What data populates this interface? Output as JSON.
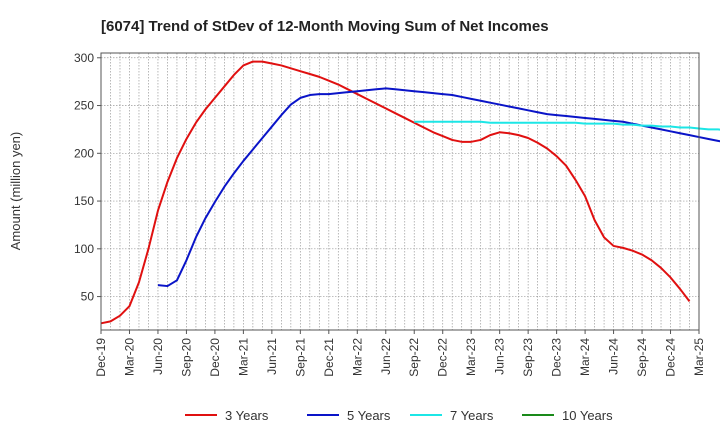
{
  "chart_data": {
    "type": "line",
    "title": "[6074]  Trend of StDev of 12-Month Moving Sum of Net Incomes",
    "xlabel": "",
    "ylabel": "Amount (million yen)",
    "ylim": [
      15,
      305
    ],
    "yticks": [
      50,
      100,
      150,
      200,
      250,
      300
    ],
    "grid": true,
    "legend_position": "bottom",
    "x_tick_labels": [
      "Dec-19",
      "Mar-20",
      "Jun-20",
      "Sep-20",
      "Dec-20",
      "Mar-21",
      "Jun-21",
      "Sep-21",
      "Dec-21",
      "Mar-22",
      "Jun-22",
      "Sep-22",
      "Dec-22",
      "Mar-23",
      "Jun-23",
      "Sep-23",
      "Dec-23",
      "Mar-24",
      "Jun-24",
      "Sep-24",
      "Dec-24",
      "Mar-25"
    ],
    "series": [
      {
        "name": "3 Years",
        "color": "#e01010",
        "start_month_index": 0,
        "values": [
          22,
          24,
          30,
          40,
          65,
          100,
          140,
          170,
          195,
          215,
          232,
          246,
          258,
          270,
          282,
          292,
          296,
          296,
          294,
          292,
          289,
          286,
          283,
          280,
          276,
          272,
          267,
          262,
          257,
          252,
          247,
          242,
          237,
          232,
          227,
          222,
          218,
          214,
          212,
          212,
          214,
          219,
          222,
          221,
          219,
          216,
          211,
          205,
          197,
          187,
          172,
          155,
          130,
          112,
          103,
          101,
          98,
          94,
          88,
          80,
          70,
          58,
          45
        ]
      },
      {
        "name": "5 Years",
        "color": "#0a14c8",
        "start_month_index": 6,
        "values": [
          62,
          61,
          67,
          88,
          112,
          132,
          149,
          165,
          179,
          192,
          204,
          216,
          228,
          240,
          251,
          258,
          261,
          262,
          262,
          263,
          264,
          265,
          266,
          267,
          268,
          267,
          266,
          265,
          264,
          263,
          262,
          261,
          259,
          257,
          255,
          253,
          251,
          249,
          247,
          245,
          243,
          241,
          240,
          239,
          238,
          237,
          236,
          235,
          234,
          233,
          231,
          229,
          227,
          225,
          223,
          221,
          219,
          217,
          215,
          213,
          211,
          209
        ]
      },
      {
        "name": "7 Years",
        "color": "#1ce6e6",
        "start_month_index": 33,
        "values": [
          233,
          233,
          233,
          233,
          233,
          233,
          233,
          233,
          232,
          232,
          232,
          232,
          232,
          232,
          232,
          232,
          232,
          232,
          231,
          231,
          231,
          231,
          230,
          230,
          229,
          229,
          228,
          228,
          227,
          227,
          226,
          225,
          225,
          224,
          223,
          222,
          221,
          220,
          219,
          218,
          216,
          215
        ]
      },
      {
        "name": "10 Years",
        "color": "#1a8a1a",
        "start_month_index": 0,
        "values": []
      }
    ]
  }
}
